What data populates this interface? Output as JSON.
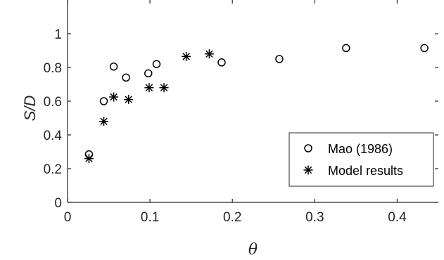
{
  "chart_data": {
    "type": "scatter",
    "xlabel": "θ",
    "ylabel": "S/D",
    "xlim": [
      0,
      0.45
    ],
    "ylim": [
      0,
      1.2
    ],
    "x_ticks": [
      0,
      0.1,
      0.2,
      0.3,
      0.4
    ],
    "x_tick_labels": [
      "0",
      "0.1",
      "0.2",
      "0.3",
      "0.4"
    ],
    "y_ticks": [
      0,
      0.2,
      0.4,
      0.6,
      0.8,
      1
    ],
    "y_tick_labels": [
      "0",
      "0.2",
      "0.4",
      "0.6",
      "0.8",
      "1"
    ],
    "grid": false,
    "legend_position": "bottom-right",
    "series": [
      {
        "name": "Mao (1986)",
        "marker": "circle",
        "color": "#000000",
        "x": [
          0.026,
          0.044,
          0.056,
          0.071,
          0.098,
          0.108,
          0.187,
          0.257,
          0.338,
          0.433
        ],
        "y": [
          0.285,
          0.6,
          0.805,
          0.74,
          0.765,
          0.82,
          0.83,
          0.85,
          0.915,
          0.915
        ]
      },
      {
        "name": "Model results",
        "marker": "asterisk",
        "color": "#000000",
        "x": [
          0.026,
          0.044,
          0.056,
          0.074,
          0.099,
          0.117,
          0.144,
          0.172
        ],
        "y": [
          0.26,
          0.48,
          0.625,
          0.61,
          0.68,
          0.68,
          0.865,
          0.88
        ]
      }
    ]
  }
}
